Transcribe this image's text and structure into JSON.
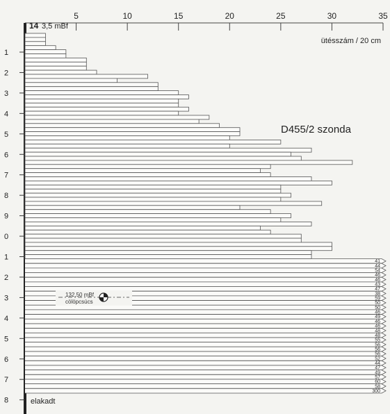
{
  "chart_data": {
    "type": "bar",
    "orientation": "horizontal",
    "title": "D455/2 szonda",
    "x_unit_label": "ütésszám / 20 cm",
    "xlim": [
      0,
      35
    ],
    "x_ticks": [
      5,
      10,
      15,
      20,
      25,
      30,
      35
    ],
    "top_label": "14",
    "top_elevation_label": "3,5 mBf",
    "depth_tick_labels": [
      "1",
      "2",
      "3",
      "4",
      "5",
      "6",
      "7",
      "8",
      "9",
      "0",
      "1",
      "2",
      "3",
      "4",
      "5",
      "6",
      "7",
      "8"
    ],
    "pile_tip_label": "132,50 mBf",
    "pile_tip_sublabel": "cölöpcsúcs",
    "end_label": "elakadt",
    "values": [
      2,
      2,
      2,
      3,
      4,
      4,
      6,
      6,
      6,
      7,
      12,
      9,
      13,
      13,
      15,
      16,
      15,
      15,
      16,
      15,
      18,
      17,
      19,
      21,
      21,
      20,
      25,
      20,
      28,
      26,
      27,
      32,
      24,
      23,
      24,
      28,
      30,
      25,
      25,
      26,
      25,
      29,
      21,
      24,
      26,
      25,
      28,
      23,
      24,
      27,
      27,
      30,
      30,
      28,
      28
    ],
    "overflow_values": [
      41,
      44,
      54,
      46,
      46,
      43,
      47,
      38,
      59,
      50,
      50,
      46,
      49,
      46,
      46,
      48,
      48,
      55,
      56,
      56,
      56,
      52,
      44,
      47,
      49,
      57,
      60,
      58,
      300
    ],
    "grid": false
  }
}
